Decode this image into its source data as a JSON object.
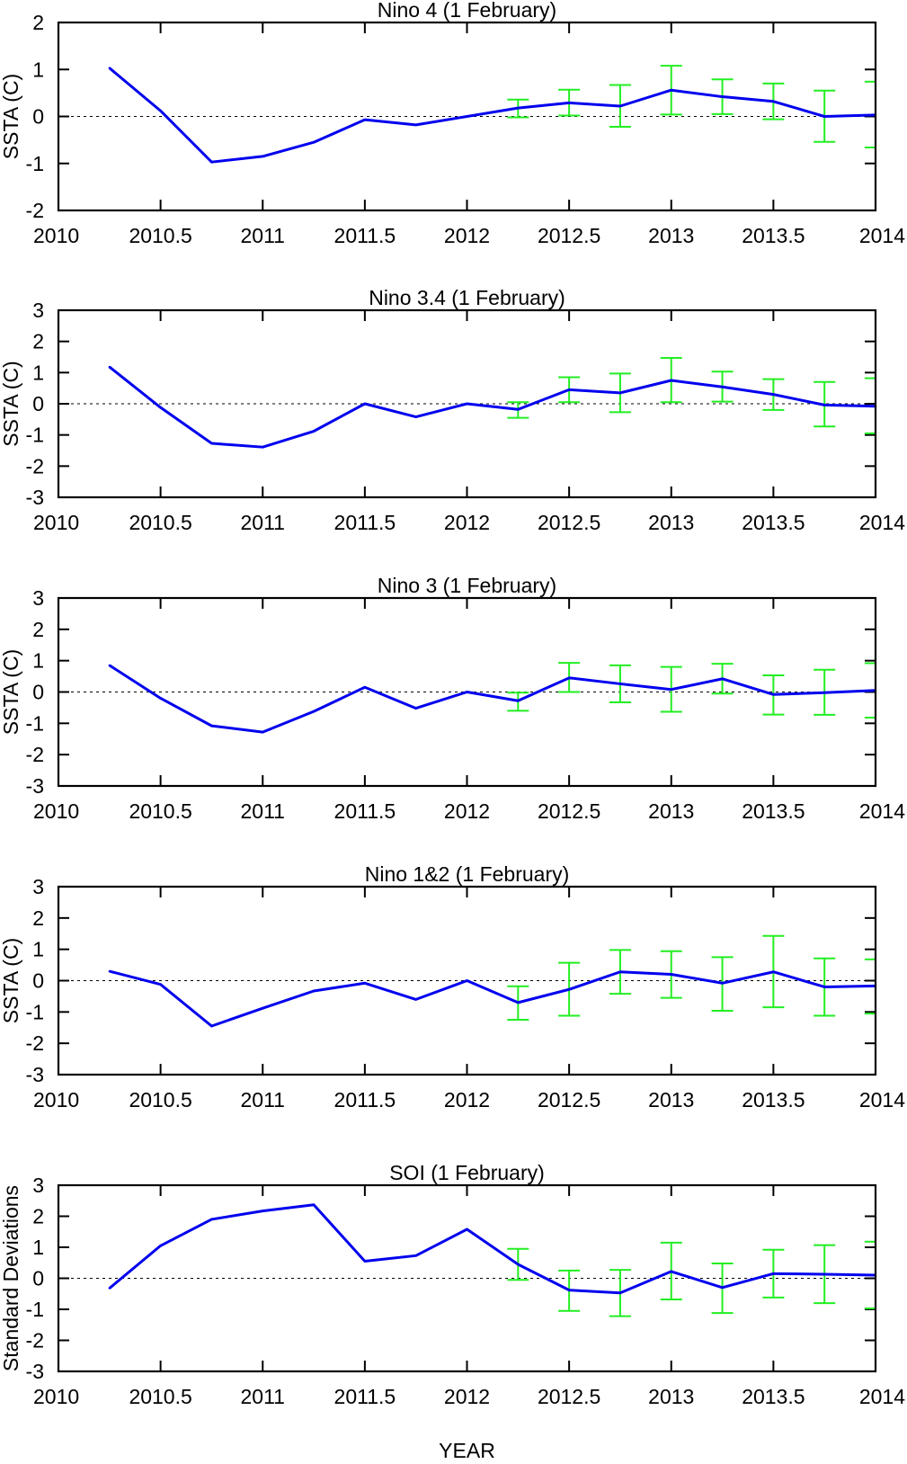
{
  "chart_data": [
    {
      "type": "line",
      "title": "Nino 4 (1 February)",
      "ylabel": "SSTA (C)",
      "xlabel": "",
      "xlim": [
        2010,
        2014
      ],
      "ylim": [
        -2,
        2
      ],
      "xticks": [
        "2010",
        "2010.5",
        "2011",
        "2011.5",
        "2012",
        "2012.5",
        "2013",
        "2013.5",
        "2014"
      ],
      "yticks": [
        "-2",
        "-1",
        "0",
        "1",
        "2"
      ],
      "zero_line": true,
      "series": [
        {
          "color": "#0000ee",
          "x": [
            2010.25,
            2010.5,
            2010.75,
            2011.0,
            2011.25,
            2011.5,
            2011.75,
            2012.0,
            2012.25,
            2012.5,
            2012.75,
            2013.0,
            2013.25,
            2013.5,
            2013.75,
            2014.0
          ],
          "y": [
            1.03,
            0.12,
            -0.97,
            -0.85,
            -0.55,
            -0.07,
            -0.18,
            0.0,
            0.18,
            0.29,
            0.22,
            0.56,
            0.42,
            0.32,
            0.0,
            0.03
          ]
        }
      ],
      "error_bars": {
        "color": "#22ee22",
        "x": [
          2012.25,
          2012.5,
          2012.75,
          2013.0,
          2013.25,
          2013.5,
          2013.75,
          2014.0
        ],
        "low": [
          -0.02,
          0.02,
          -0.22,
          0.04,
          0.05,
          -0.06,
          -0.54,
          -0.66
        ],
        "high": [
          0.36,
          0.57,
          0.67,
          1.08,
          0.79,
          0.7,
          0.55,
          0.74
        ]
      }
    },
    {
      "type": "line",
      "title": "Nino 3.4 (1 February)",
      "ylabel": "SSTA (C)",
      "xlabel": "",
      "xlim": [
        2010,
        2014
      ],
      "ylim": [
        -3,
        3
      ],
      "xticks": [
        "2010",
        "2010.5",
        "2011",
        "2011.5",
        "2012",
        "2012.5",
        "2013",
        "2013.5",
        "2014"
      ],
      "yticks": [
        "-3",
        "-2",
        "-1",
        "0",
        "1",
        "2",
        "3"
      ],
      "zero_line": true,
      "series": [
        {
          "color": "#0000ee",
          "x": [
            2010.25,
            2010.5,
            2010.75,
            2011.0,
            2011.25,
            2011.5,
            2011.75,
            2012.0,
            2012.25,
            2012.5,
            2012.75,
            2013.0,
            2013.25,
            2013.5,
            2013.75,
            2014.0
          ],
          "y": [
            1.18,
            -0.12,
            -1.27,
            -1.39,
            -0.88,
            0.0,
            -0.42,
            0.0,
            -0.18,
            0.45,
            0.35,
            0.75,
            0.54,
            0.3,
            -0.04,
            -0.08
          ]
        }
      ],
      "error_bars": {
        "color": "#22ee22",
        "x": [
          2012.25,
          2012.5,
          2012.75,
          2013.0,
          2013.25,
          2013.5,
          2013.75,
          2014.0
        ],
        "low": [
          -0.45,
          0.05,
          -0.27,
          0.05,
          0.07,
          -0.2,
          -0.73,
          -0.95
        ],
        "high": [
          0.05,
          0.85,
          0.97,
          1.47,
          1.03,
          0.79,
          0.7,
          0.82
        ]
      }
    },
    {
      "type": "line",
      "title": "Nino 3 (1 February)",
      "ylabel": "SSTA (C)",
      "xlabel": "",
      "xlim": [
        2010,
        2014
      ],
      "ylim": [
        -3,
        3
      ],
      "xticks": [
        "2010",
        "2010.5",
        "2011",
        "2011.5",
        "2012",
        "2012.5",
        "2013",
        "2013.5",
        "2014"
      ],
      "yticks": [
        "-3",
        "-2",
        "-1",
        "0",
        "1",
        "2",
        "3"
      ],
      "zero_line": true,
      "series": [
        {
          "color": "#0000ee",
          "x": [
            2010.25,
            2010.5,
            2010.75,
            2011.0,
            2011.25,
            2011.5,
            2011.75,
            2012.0,
            2012.25,
            2012.5,
            2012.75,
            2013.0,
            2013.25,
            2013.5,
            2013.75,
            2014.0
          ],
          "y": [
            0.85,
            -0.2,
            -1.08,
            -1.28,
            -0.62,
            0.15,
            -0.52,
            0.0,
            -0.28,
            0.45,
            0.26,
            0.08,
            0.42,
            -0.08,
            -0.02,
            0.05
          ]
        }
      ],
      "error_bars": {
        "color": "#22ee22",
        "x": [
          2012.25,
          2012.5,
          2012.75,
          2013.0,
          2013.25,
          2013.5,
          2013.75,
          2014.0
        ],
        "low": [
          -0.6,
          0.0,
          -0.33,
          -0.63,
          -0.05,
          -0.72,
          -0.73,
          -0.82
        ],
        "high": [
          -0.02,
          0.93,
          0.85,
          0.8,
          0.9,
          0.53,
          0.71,
          0.92
        ]
      }
    },
    {
      "type": "line",
      "title": "Nino 1&2 (1 February)",
      "ylabel": "SSTA (C)",
      "xlabel": "",
      "xlim": [
        2010,
        2014
      ],
      "ylim": [
        -3,
        3
      ],
      "xticks": [
        "2010",
        "2010.5",
        "2011",
        "2011.5",
        "2012",
        "2012.5",
        "2013",
        "2013.5",
        "2014"
      ],
      "yticks": [
        "-3",
        "-2",
        "-1",
        "0",
        "1",
        "2",
        "3"
      ],
      "zero_line": true,
      "series": [
        {
          "color": "#0000ee",
          "x": [
            2010.25,
            2010.5,
            2010.75,
            2011.0,
            2011.25,
            2011.5,
            2011.75,
            2012.0,
            2012.25,
            2012.5,
            2012.75,
            2013.0,
            2013.25,
            2013.5,
            2013.75,
            2014.0
          ],
          "y": [
            0.3,
            -0.12,
            -1.45,
            -0.88,
            -0.33,
            -0.08,
            -0.6,
            0.0,
            -0.7,
            -0.28,
            0.28,
            0.2,
            -0.08,
            0.28,
            -0.2,
            -0.17
          ]
        }
      ],
      "error_bars": {
        "color": "#22ee22",
        "x": [
          2012.25,
          2012.5,
          2012.75,
          2013.0,
          2013.25,
          2013.5,
          2013.75,
          2014.0
        ],
        "low": [
          -1.25,
          -1.12,
          -0.42,
          -0.55,
          -0.96,
          -0.85,
          -1.12,
          -1.05
        ],
        "high": [
          -0.18,
          0.57,
          0.98,
          0.94,
          0.75,
          1.43,
          0.71,
          0.68
        ]
      }
    },
    {
      "type": "line",
      "title": "SOI (1 February)",
      "ylabel": "Standard Deviations",
      "xlabel": "YEAR",
      "xlim": [
        2010,
        2014
      ],
      "ylim": [
        -3,
        3
      ],
      "xticks": [
        "2010",
        "2010.5",
        "2011",
        "2011.5",
        "2012",
        "2012.5",
        "2013",
        "2013.5",
        "2014"
      ],
      "yticks": [
        "-3",
        "-2",
        "-1",
        "0",
        "1",
        "2",
        "3"
      ],
      "zero_line": true,
      "series": [
        {
          "color": "#0000ee",
          "x": [
            2010.25,
            2010.5,
            2010.75,
            2011.0,
            2011.25,
            2011.5,
            2011.75,
            2012.0,
            2012.25,
            2012.5,
            2012.75,
            2013.0,
            2013.25,
            2013.5,
            2013.75,
            2014.0
          ],
          "y": [
            -0.32,
            1.05,
            1.9,
            2.17,
            2.37,
            0.55,
            0.73,
            1.58,
            0.45,
            -0.38,
            -0.47,
            0.22,
            -0.3,
            0.15,
            0.13,
            0.1
          ]
        }
      ],
      "error_bars": {
        "color": "#22ee22",
        "x": [
          2012.25,
          2012.5,
          2012.75,
          2013.0,
          2013.25,
          2013.5,
          2013.75,
          2014.0
        ],
        "low": [
          -0.05,
          -1.05,
          -1.22,
          -0.68,
          -1.12,
          -0.62,
          -0.8,
          -0.97
        ],
        "high": [
          0.95,
          0.25,
          0.27,
          1.15,
          0.48,
          0.92,
          1.07,
          1.18
        ]
      }
    }
  ]
}
